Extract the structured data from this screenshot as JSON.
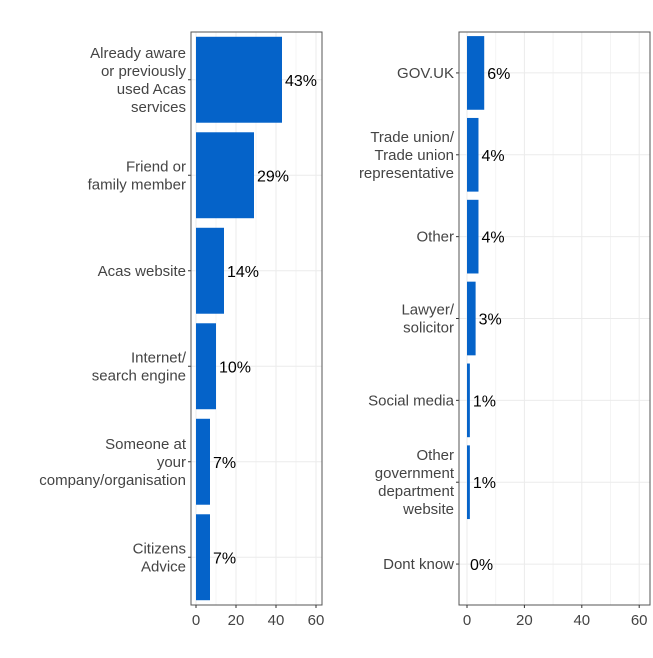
{
  "chart_data": [
    {
      "type": "bar",
      "orientation": "horizontal",
      "categories": [
        "Already aware\nor previously\nused Acas\nservices",
        "Friend or\nfamily member",
        "Acas website",
        "Internet/\nsearch engine",
        "Someone at\nyour\ncompany/organisation",
        "Citizens\nAdvice"
      ],
      "values": [
        43,
        29,
        14,
        10,
        7,
        7
      ],
      "data_labels": [
        "43%",
        "29%",
        "14%",
        "10%",
        "7%",
        "7%"
      ],
      "xlim": [
        0,
        63
      ],
      "xticks": [
        0,
        20,
        40,
        60
      ],
      "xtick_labels": [
        "0",
        "20",
        "40",
        "60"
      ],
      "grid": true,
      "bar_color": "#0563C9"
    },
    {
      "type": "bar",
      "orientation": "horizontal",
      "categories": [
        "GOV.UK",
        "Trade union/\nTrade union\nrepresentative",
        "Other",
        "Lawyer/\nsolicitor",
        "Social media",
        "Other\ngovernment\ndepartment\nwebsite",
        "Dont know"
      ],
      "values": [
        6,
        4,
        4,
        3,
        1,
        1,
        0
      ],
      "data_labels": [
        "6%",
        "4%",
        "4%",
        "3%",
        "1%",
        "1%",
        "0%"
      ],
      "xlim": [
        0,
        63
      ],
      "xticks": [
        0,
        20,
        40,
        60
      ],
      "xtick_labels": [
        "0",
        "20",
        "40",
        "60"
      ],
      "grid": true,
      "bar_color": "#0563C9"
    }
  ]
}
